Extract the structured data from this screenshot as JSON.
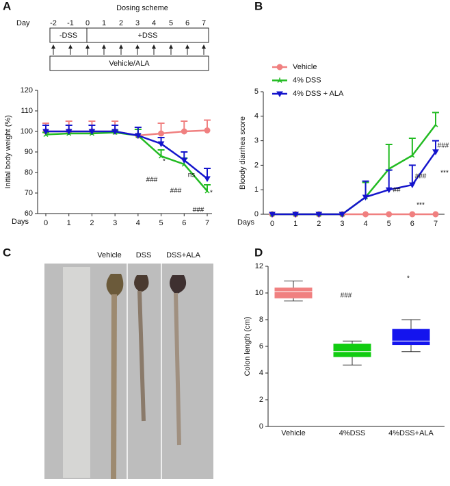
{
  "panels": [
    "A",
    "B",
    "C",
    "D"
  ],
  "dosing_scheme": {
    "title": "Dosing scheme",
    "day_label": "Day",
    "days": [
      "-2",
      "-1",
      "0",
      "1",
      "2",
      "3",
      "4",
      "5",
      "6",
      "7"
    ],
    "phases": [
      "-DSS",
      "+DSS"
    ],
    "treatment": "Vehicle/ALA"
  },
  "photo": {
    "labels": [
      "Vehicle",
      "DSS",
      "DSS+ALA"
    ]
  },
  "chart_data": [
    {
      "type": "line",
      "x_label": "Days",
      "y_label": "Initial body weight (%)",
      "x": [
        0,
        1,
        2,
        3,
        4,
        5,
        6,
        7
      ],
      "xlim": [
        0,
        7
      ],
      "xticks": [
        0,
        1,
        2,
        3,
        4,
        5,
        6,
        7
      ],
      "ylim": [
        60,
        120
      ],
      "yticks": [
        60,
        70,
        80,
        90,
        100,
        110,
        120
      ],
      "series": [
        {
          "color": "#f08080",
          "marker": "circle",
          "values": [
            100,
            100,
            100,
            100,
            98,
            99,
            100,
            100.5
          ],
          "errors": [
            4,
            5,
            5,
            5,
            4,
            5,
            5,
            5
          ]
        },
        {
          "color": "#22bb22",
          "marker": "star",
          "values": [
            98.5,
            99,
            99,
            99.5,
            98,
            88,
            84,
            71
          ],
          "errors": [
            1,
            1,
            1,
            1,
            3,
            3,
            3,
            3
          ]
        },
        {
          "color": "#1414cc",
          "marker": "triangle",
          "values": [
            100,
            100,
            100,
            100,
            98,
            94,
            86,
            77
          ],
          "errors": [
            3,
            3,
            3,
            3,
            4,
            3,
            4,
            5
          ]
        }
      ],
      "annotations": [
        "*",
        "###",
        "###",
        "ns",
        "*",
        "###"
      ]
    },
    {
      "type": "line",
      "x_label": "Days",
      "y_label": "Bloody diarrhea score",
      "x": [
        0,
        1,
        2,
        3,
        4,
        5,
        6,
        7
      ],
      "xlim": [
        0,
        7
      ],
      "xticks": [
        0,
        1,
        2,
        3,
        4,
        5,
        6,
        7
      ],
      "ylim": [
        0,
        5
      ],
      "yticks": [
        0,
        1,
        2,
        3,
        4,
        5
      ],
      "series": [
        {
          "name": "Vehicle",
          "color": "#f08080",
          "marker": "circle",
          "values": [
            0,
            0,
            0,
            0,
            0,
            0,
            0,
            0
          ]
        },
        {
          "name": "4% DSS",
          "color": "#22bb22",
          "marker": "star",
          "values": [
            0,
            0,
            0,
            0,
            0.7,
            1.85,
            2.4,
            3.65
          ],
          "errors": [
            0,
            0,
            0,
            0,
            0.6,
            1.0,
            0.7,
            0.5
          ]
        },
        {
          "name": "4% DSS + ALA",
          "color": "#1414cc",
          "marker": "triangle",
          "values": [
            0,
            0,
            0,
            0,
            0.7,
            1.0,
            1.2,
            2.55
          ],
          "errors": [
            0,
            0,
            0,
            0,
            0.65,
            0.8,
            0.8,
            0.45
          ]
        }
      ],
      "legend": "top-left",
      "annotations": [
        "##",
        "###",
        "***",
        "###",
        "***"
      ]
    },
    {
      "type": "box",
      "y_label": "Colon length (cm)",
      "categories": [
        "Vehicle",
        "4%DSS",
        "4%DSS+ALA"
      ],
      "colors": [
        "#f08080",
        "#11cc11",
        "#1414ee"
      ],
      "ylim": [
        0,
        12
      ],
      "yticks": [
        0,
        2,
        4,
        6,
        8,
        10,
        12
      ],
      "boxes": [
        {
          "min": 9.4,
          "q1": 9.6,
          "median": 10.1,
          "q3": 10.4,
          "max": 10.9
        },
        {
          "min": 4.6,
          "q1": 5.2,
          "median": 5.6,
          "q3": 6.2,
          "max": 6.4
        },
        {
          "min": 5.6,
          "q1": 6.1,
          "median": 6.4,
          "q3": 7.3,
          "max": 8.0
        }
      ],
      "annotations": [
        "###",
        "*"
      ]
    }
  ]
}
